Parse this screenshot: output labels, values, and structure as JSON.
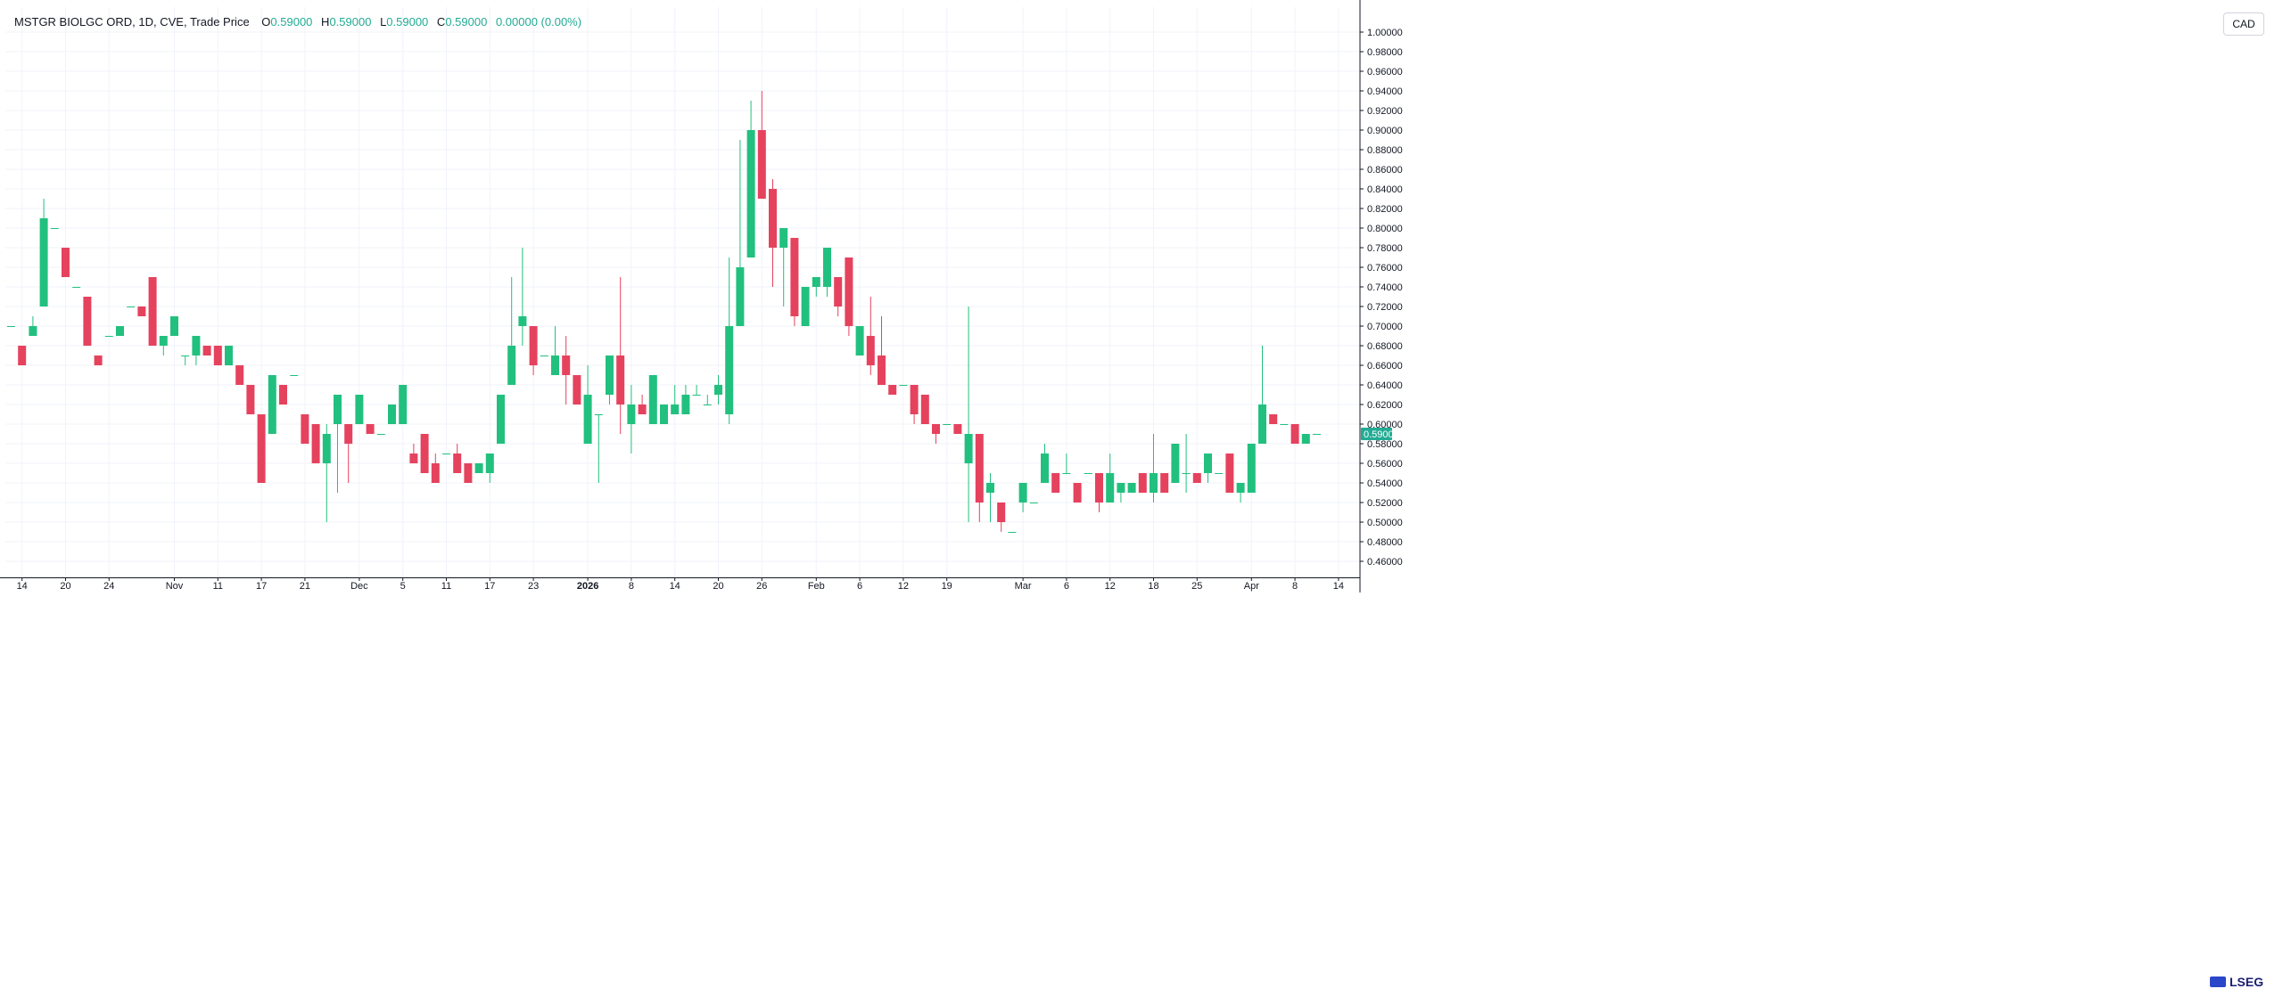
{
  "legend": {
    "symbol": "MSTGR BIOLGC ORD, 1D, CVE, Trade Price",
    "o_label": "O",
    "o_value": "0.59000",
    "h_label": "H",
    "h_value": "0.59000",
    "l_label": "L",
    "l_value": "0.59000",
    "c_label": "C",
    "c_value": "0.59000",
    "change": "0.00000 (0.00%)"
  },
  "currency": "CAD",
  "brand": "LSEG",
  "colors": {
    "up": "#22c07f",
    "down": "#e5425e",
    "grid": "#f0f3fa",
    "axis": "#131722",
    "price_tag": "#22ab94"
  },
  "chart_data": {
    "type": "candlestick",
    "ylim": [
      0.44,
      1.02
    ],
    "y_ticks": [
      "1.00000",
      "0.98000",
      "0.96000",
      "0.94000",
      "0.92000",
      "0.90000",
      "0.88000",
      "0.86000",
      "0.84000",
      "0.82000",
      "0.80000",
      "0.78000",
      "0.76000",
      "0.74000",
      "0.72000",
      "0.70000",
      "0.68000",
      "0.66000",
      "0.64000",
      "0.62000",
      "0.60000",
      "0.58000",
      "0.56000",
      "0.54000",
      "0.52000",
      "0.50000",
      "0.48000",
      "0.46000"
    ],
    "x_ticks": [
      {
        "label": "14",
        "index": 1
      },
      {
        "label": "20",
        "index": 5
      },
      {
        "label": "24",
        "index": 9
      },
      {
        "label": "Nov",
        "index": 15
      },
      {
        "label": "11",
        "index": 19
      },
      {
        "label": "17",
        "index": 23
      },
      {
        "label": "21",
        "index": 27
      },
      {
        "label": "Dec",
        "index": 32
      },
      {
        "label": "5",
        "index": 36
      },
      {
        "label": "11",
        "index": 40
      },
      {
        "label": "17",
        "index": 44
      },
      {
        "label": "23",
        "index": 48
      },
      {
        "label": "2026",
        "index": 53
      },
      {
        "label": "8",
        "index": 57
      },
      {
        "label": "14",
        "index": 61
      },
      {
        "label": "20",
        "index": 65
      },
      {
        "label": "26",
        "index": 69
      },
      {
        "label": "Feb",
        "index": 74
      },
      {
        "label": "6",
        "index": 78
      },
      {
        "label": "12",
        "index": 82
      },
      {
        "label": "19",
        "index": 86
      },
      {
        "label": "Mar",
        "index": 93
      },
      {
        "label": "6",
        "index": 97
      },
      {
        "label": "12",
        "index": 101
      },
      {
        "label": "18",
        "index": 105
      },
      {
        "label": "25",
        "index": 109
      },
      {
        "label": "Apr",
        "index": 114
      },
      {
        "label": "8",
        "index": 118
      },
      {
        "label": "14",
        "index": 122
      }
    ],
    "last_price": "0.59000",
    "candles": [
      {
        "o": 0.7,
        "h": 0.7,
        "l": 0.7,
        "c": 0.7
      },
      {
        "o": 0.68,
        "h": 0.68,
        "l": 0.66,
        "c": 0.66
      },
      {
        "o": 0.69,
        "h": 0.71,
        "l": 0.69,
        "c": 0.7
      },
      {
        "o": 0.72,
        "h": 0.83,
        "l": 0.72,
        "c": 0.81
      },
      {
        "o": 0.8,
        "h": 0.8,
        "l": 0.8,
        "c": 0.8
      },
      {
        "o": 0.78,
        "h": 0.78,
        "l": 0.75,
        "c": 0.75
      },
      {
        "o": 0.74,
        "h": 0.74,
        "l": 0.74,
        "c": 0.74
      },
      {
        "o": 0.73,
        "h": 0.73,
        "l": 0.68,
        "c": 0.68
      },
      {
        "o": 0.67,
        "h": 0.67,
        "l": 0.66,
        "c": 0.66
      },
      {
        "o": 0.69,
        "h": 0.69,
        "l": 0.69,
        "c": 0.69
      },
      {
        "o": 0.69,
        "h": 0.7,
        "l": 0.69,
        "c": 0.7
      },
      {
        "o": 0.72,
        "h": 0.72,
        "l": 0.72,
        "c": 0.72
      },
      {
        "o": 0.72,
        "h": 0.72,
        "l": 0.71,
        "c": 0.71
      },
      {
        "o": 0.75,
        "h": 0.75,
        "l": 0.68,
        "c": 0.68
      },
      {
        "o": 0.68,
        "h": 0.69,
        "l": 0.67,
        "c": 0.69
      },
      {
        "o": 0.69,
        "h": 0.71,
        "l": 0.69,
        "c": 0.71
      },
      {
        "o": 0.67,
        "h": 0.67,
        "l": 0.66,
        "c": 0.67
      },
      {
        "o": 0.67,
        "h": 0.69,
        "l": 0.66,
        "c": 0.69
      },
      {
        "o": 0.68,
        "h": 0.68,
        "l": 0.67,
        "c": 0.67
      },
      {
        "o": 0.68,
        "h": 0.68,
        "l": 0.66,
        "c": 0.66
      },
      {
        "o": 0.66,
        "h": 0.68,
        "l": 0.66,
        "c": 0.68
      },
      {
        "o": 0.66,
        "h": 0.66,
        "l": 0.64,
        "c": 0.64
      },
      {
        "o": 0.64,
        "h": 0.64,
        "l": 0.61,
        "c": 0.61
      },
      {
        "o": 0.61,
        "h": 0.61,
        "l": 0.54,
        "c": 0.54
      },
      {
        "o": 0.59,
        "h": 0.65,
        "l": 0.59,
        "c": 0.65
      },
      {
        "o": 0.64,
        "h": 0.64,
        "l": 0.62,
        "c": 0.62
      },
      {
        "o": 0.65,
        "h": 0.65,
        "l": 0.65,
        "c": 0.65
      },
      {
        "o": 0.61,
        "h": 0.61,
        "l": 0.58,
        "c": 0.58
      },
      {
        "o": 0.6,
        "h": 0.6,
        "l": 0.56,
        "c": 0.56
      },
      {
        "o": 0.56,
        "h": 0.6,
        "l": 0.5,
        "c": 0.59
      },
      {
        "o": 0.6,
        "h": 0.63,
        "l": 0.53,
        "c": 0.63
      },
      {
        "o": 0.6,
        "h": 0.6,
        "l": 0.54,
        "c": 0.58
      },
      {
        "o": 0.6,
        "h": 0.63,
        "l": 0.6,
        "c": 0.63
      },
      {
        "o": 0.6,
        "h": 0.6,
        "l": 0.59,
        "c": 0.59
      },
      {
        "o": 0.59,
        "h": 0.59,
        "l": 0.59,
        "c": 0.59
      },
      {
        "o": 0.6,
        "h": 0.62,
        "l": 0.6,
        "c": 0.62
      },
      {
        "o": 0.6,
        "h": 0.64,
        "l": 0.6,
        "c": 0.64
      },
      {
        "o": 0.57,
        "h": 0.58,
        "l": 0.56,
        "c": 0.56
      },
      {
        "o": 0.59,
        "h": 0.59,
        "l": 0.55,
        "c": 0.55
      },
      {
        "o": 0.56,
        "h": 0.57,
        "l": 0.54,
        "c": 0.54
      },
      {
        "o": 0.57,
        "h": 0.57,
        "l": 0.57,
        "c": 0.57
      },
      {
        "o": 0.57,
        "h": 0.58,
        "l": 0.55,
        "c": 0.55
      },
      {
        "o": 0.56,
        "h": 0.56,
        "l": 0.54,
        "c": 0.54
      },
      {
        "o": 0.55,
        "h": 0.56,
        "l": 0.55,
        "c": 0.56
      },
      {
        "o": 0.55,
        "h": 0.57,
        "l": 0.54,
        "c": 0.57
      },
      {
        "o": 0.58,
        "h": 0.63,
        "l": 0.58,
        "c": 0.63
      },
      {
        "o": 0.64,
        "h": 0.75,
        "l": 0.64,
        "c": 0.68
      },
      {
        "o": 0.7,
        "h": 0.78,
        "l": 0.68,
        "c": 0.71
      },
      {
        "o": 0.7,
        "h": 0.7,
        "l": 0.65,
        "c": 0.66
      },
      {
        "o": 0.67,
        "h": 0.67,
        "l": 0.67,
        "c": 0.67
      },
      {
        "o": 0.65,
        "h": 0.7,
        "l": 0.65,
        "c": 0.67
      },
      {
        "o": 0.67,
        "h": 0.69,
        "l": 0.62,
        "c": 0.65
      },
      {
        "o": 0.65,
        "h": 0.65,
        "l": 0.62,
        "c": 0.62
      },
      {
        "o": 0.58,
        "h": 0.66,
        "l": 0.58,
        "c": 0.63
      },
      {
        "o": 0.61,
        "h": 0.61,
        "l": 0.54,
        "c": 0.61
      },
      {
        "o": 0.63,
        "h": 0.67,
        "l": 0.62,
        "c": 0.67
      },
      {
        "o": 0.67,
        "h": 0.75,
        "l": 0.59,
        "c": 0.62
      },
      {
        "o": 0.6,
        "h": 0.64,
        "l": 0.57,
        "c": 0.62
      },
      {
        "o": 0.62,
        "h": 0.63,
        "l": 0.61,
        "c": 0.61
      },
      {
        "o": 0.6,
        "h": 0.65,
        "l": 0.6,
        "c": 0.65
      },
      {
        "o": 0.6,
        "h": 0.62,
        "l": 0.6,
        "c": 0.62
      },
      {
        "o": 0.61,
        "h": 0.64,
        "l": 0.61,
        "c": 0.62
      },
      {
        "o": 0.61,
        "h": 0.64,
        "l": 0.61,
        "c": 0.63
      },
      {
        "o": 0.63,
        "h": 0.64,
        "l": 0.63,
        "c": 0.63
      },
      {
        "o": 0.62,
        "h": 0.63,
        "l": 0.62,
        "c": 0.62
      },
      {
        "o": 0.63,
        "h": 0.65,
        "l": 0.62,
        "c": 0.64
      },
      {
        "o": 0.61,
        "h": 0.77,
        "l": 0.6,
        "c": 0.7
      },
      {
        "o": 0.7,
        "h": 0.89,
        "l": 0.7,
        "c": 0.76
      },
      {
        "o": 0.77,
        "h": 0.93,
        "l": 0.77,
        "c": 0.9
      },
      {
        "o": 0.9,
        "h": 0.94,
        "l": 0.83,
        "c": 0.83
      },
      {
        "o": 0.84,
        "h": 0.85,
        "l": 0.74,
        "c": 0.78
      },
      {
        "o": 0.78,
        "h": 0.8,
        "l": 0.72,
        "c": 0.8
      },
      {
        "o": 0.79,
        "h": 0.79,
        "l": 0.7,
        "c": 0.71
      },
      {
        "o": 0.7,
        "h": 0.74,
        "l": 0.7,
        "c": 0.74
      },
      {
        "o": 0.74,
        "h": 0.75,
        "l": 0.73,
        "c": 0.75
      },
      {
        "o": 0.74,
        "h": 0.78,
        "l": 0.73,
        "c": 0.78
      },
      {
        "o": 0.75,
        "h": 0.75,
        "l": 0.71,
        "c": 0.72
      },
      {
        "o": 0.77,
        "h": 0.77,
        "l": 0.69,
        "c": 0.7
      },
      {
        "o": 0.67,
        "h": 0.7,
        "l": 0.67,
        "c": 0.7
      },
      {
        "o": 0.69,
        "h": 0.73,
        "l": 0.65,
        "c": 0.66
      },
      {
        "o": 0.67,
        "h": 0.71,
        "l": 0.64,
        "c": 0.64
      },
      {
        "o": 0.64,
        "h": 0.64,
        "l": 0.63,
        "c": 0.63
      },
      {
        "o": 0.64,
        "h": 0.64,
        "l": 0.64,
        "c": 0.64
      },
      {
        "o": 0.64,
        "h": 0.64,
        "l": 0.6,
        "c": 0.61
      },
      {
        "o": 0.63,
        "h": 0.63,
        "l": 0.6,
        "c": 0.6
      },
      {
        "o": 0.6,
        "h": 0.6,
        "l": 0.58,
        "c": 0.59
      },
      {
        "o": 0.6,
        "h": 0.6,
        "l": 0.6,
        "c": 0.6
      },
      {
        "o": 0.6,
        "h": 0.6,
        "l": 0.59,
        "c": 0.59
      },
      {
        "o": 0.56,
        "h": 0.72,
        "l": 0.5,
        "c": 0.59
      },
      {
        "o": 0.59,
        "h": 0.59,
        "l": 0.5,
        "c": 0.52
      },
      {
        "o": 0.53,
        "h": 0.55,
        "l": 0.5,
        "c": 0.54
      },
      {
        "o": 0.52,
        "h": 0.52,
        "l": 0.49,
        "c": 0.5
      },
      {
        "o": 0.49,
        "h": 0.49,
        "l": 0.49,
        "c": 0.49
      },
      {
        "o": 0.52,
        "h": 0.54,
        "l": 0.51,
        "c": 0.54
      },
      {
        "o": 0.52,
        "h": 0.52,
        "l": 0.52,
        "c": 0.52
      },
      {
        "o": 0.54,
        "h": 0.58,
        "l": 0.54,
        "c": 0.57
      },
      {
        "o": 0.55,
        "h": 0.55,
        "l": 0.53,
        "c": 0.53
      },
      {
        "o": 0.55,
        "h": 0.57,
        "l": 0.55,
        "c": 0.55
      },
      {
        "o": 0.54,
        "h": 0.54,
        "l": 0.52,
        "c": 0.52
      },
      {
        "o": 0.55,
        "h": 0.55,
        "l": 0.55,
        "c": 0.55
      },
      {
        "o": 0.55,
        "h": 0.55,
        "l": 0.51,
        "c": 0.52
      },
      {
        "o": 0.52,
        "h": 0.57,
        "l": 0.52,
        "c": 0.55
      },
      {
        "o": 0.53,
        "h": 0.54,
        "l": 0.52,
        "c": 0.54
      },
      {
        "o": 0.53,
        "h": 0.54,
        "l": 0.53,
        "c": 0.54
      },
      {
        "o": 0.55,
        "h": 0.55,
        "l": 0.53,
        "c": 0.53
      },
      {
        "o": 0.53,
        "h": 0.59,
        "l": 0.52,
        "c": 0.55
      },
      {
        "o": 0.55,
        "h": 0.55,
        "l": 0.53,
        "c": 0.53
      },
      {
        "o": 0.54,
        "h": 0.58,
        "l": 0.54,
        "c": 0.58
      },
      {
        "o": 0.55,
        "h": 0.59,
        "l": 0.53,
        "c": 0.55
      },
      {
        "o": 0.55,
        "h": 0.55,
        "l": 0.54,
        "c": 0.54
      },
      {
        "o": 0.55,
        "h": 0.57,
        "l": 0.54,
        "c": 0.57
      },
      {
        "o": 0.55,
        "h": 0.55,
        "l": 0.55,
        "c": 0.55
      },
      {
        "o": 0.57,
        "h": 0.57,
        "l": 0.53,
        "c": 0.53
      },
      {
        "o": 0.53,
        "h": 0.54,
        "l": 0.52,
        "c": 0.54
      },
      {
        "o": 0.53,
        "h": 0.58,
        "l": 0.53,
        "c": 0.58
      },
      {
        "o": 0.58,
        "h": 0.68,
        "l": 0.58,
        "c": 0.62
      },
      {
        "o": 0.61,
        "h": 0.61,
        "l": 0.6,
        "c": 0.6
      },
      {
        "o": 0.6,
        "h": 0.6,
        "l": 0.6,
        "c": 0.6
      },
      {
        "o": 0.6,
        "h": 0.6,
        "l": 0.58,
        "c": 0.58
      },
      {
        "o": 0.58,
        "h": 0.59,
        "l": 0.58,
        "c": 0.59
      },
      {
        "o": 0.59,
        "h": 0.59,
        "l": 0.59,
        "c": 0.59
      }
    ]
  }
}
